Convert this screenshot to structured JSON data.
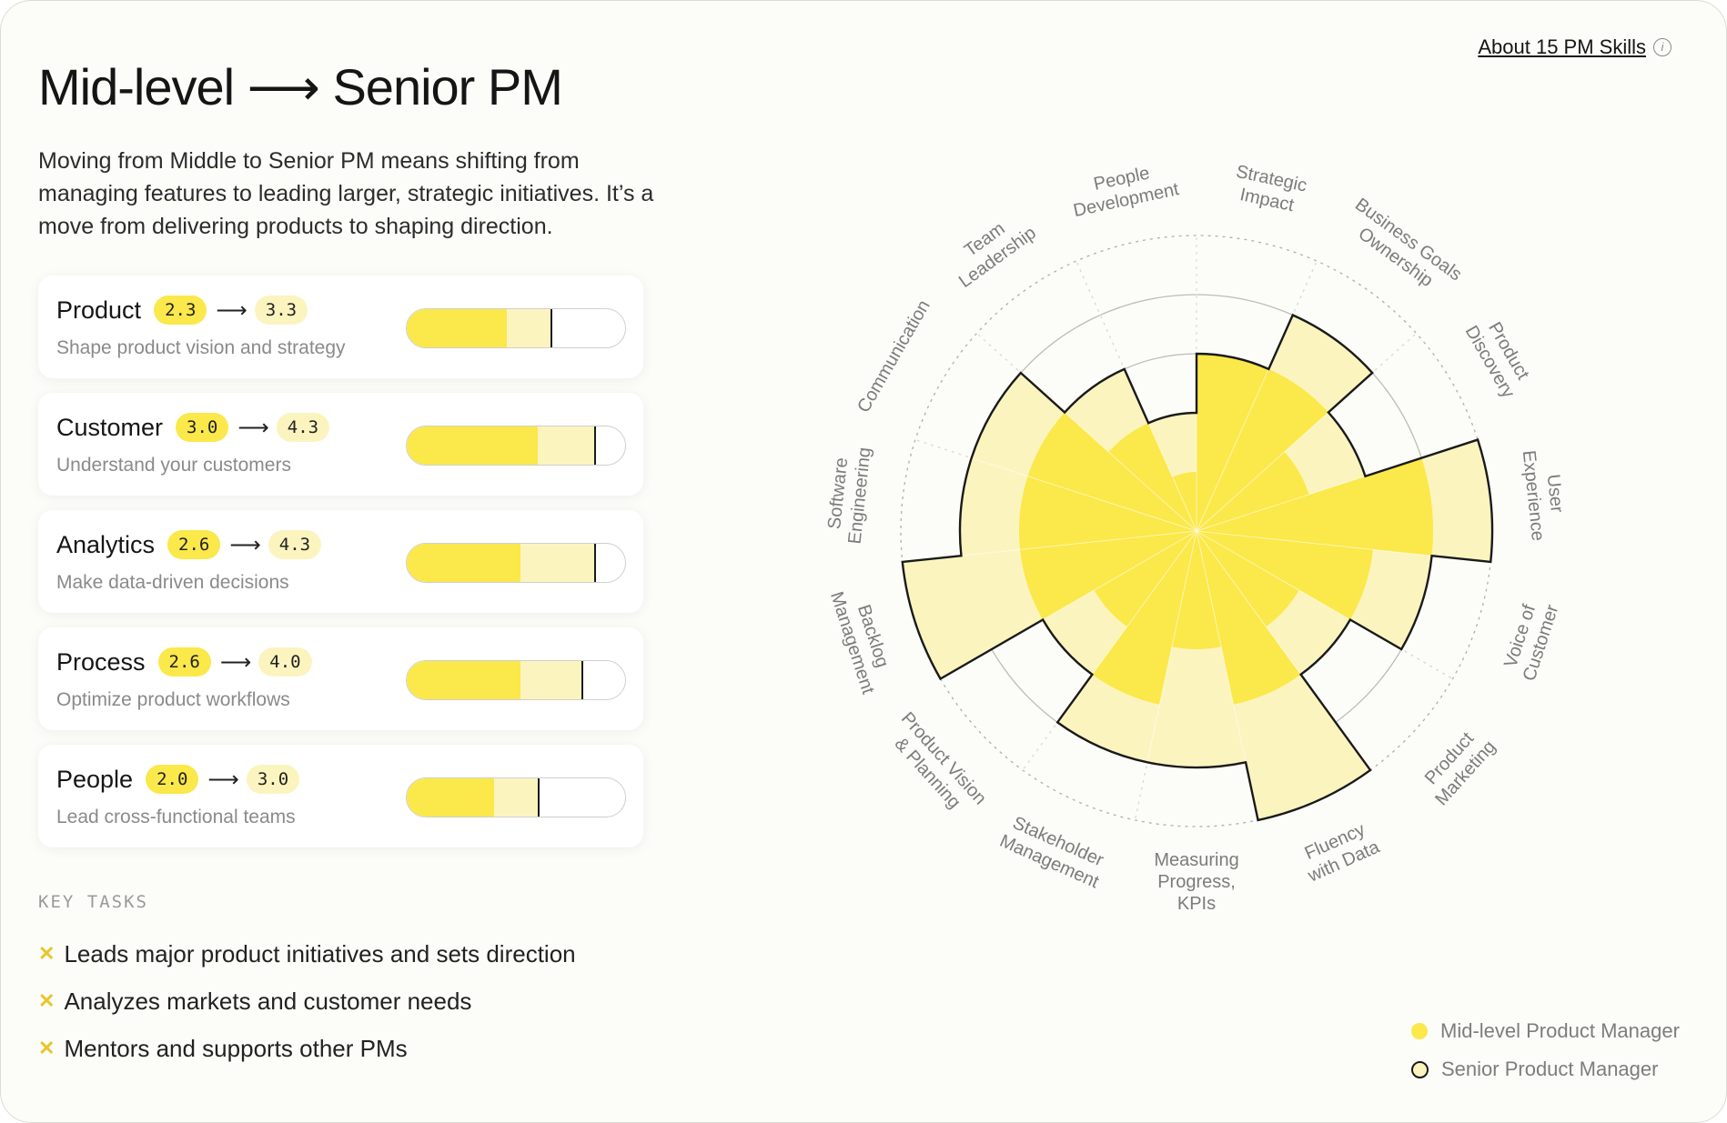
{
  "header": {
    "title": "Mid-level ⟶ Senior PM",
    "intro": "Moving from Middle to Senior PM means shifting from managing features to leading larger, strategic initiatives. It’s a move from delivering products to shaping direction.",
    "about_link": "About 15 PM Skills"
  },
  "cards": [
    {
      "name": "Product",
      "from": "2.3",
      "to": "3.3",
      "subtitle": "Shape product vision and strategy",
      "current": 2.3,
      "target": 3.3
    },
    {
      "name": "Customer",
      "from": "3.0",
      "to": "4.3",
      "subtitle": "Understand your customers",
      "current": 3.0,
      "target": 4.3
    },
    {
      "name": "Analytics",
      "from": "2.6",
      "to": "4.3",
      "subtitle": "Make data-driven decisions",
      "current": 2.6,
      "target": 4.3
    },
    {
      "name": "Process",
      "from": "2.6",
      "to": "4.0",
      "subtitle": "Optimize product workflows",
      "current": 2.6,
      "target": 4.0
    },
    {
      "name": "People",
      "from": "2.0",
      "to": "3.0",
      "subtitle": "Lead cross-functional teams",
      "current": 2.0,
      "target": 3.0
    }
  ],
  "key_tasks": {
    "title": "KEY TASKS",
    "items": [
      "Leads major product initiatives and sets direction",
      "Analyzes markets and customer needs",
      "Mentors and supports other PMs"
    ]
  },
  "legend": {
    "mid": "Mid-level Product Manager",
    "senior": "Senior Product Manager"
  },
  "colors": {
    "mid": "#fbe84a",
    "senior": "#fcf4bf",
    "outline": "#1a1a1a"
  },
  "icons": [
    "info-icon",
    "x-mark-icon"
  ],
  "radar": {
    "max": 5,
    "skills": [
      {
        "label": [
          "Strategic",
          "Impact"
        ],
        "mid": 3,
        "senior": 3
      },
      {
        "label": [
          "Business Goals",
          "Ownership"
        ],
        "mid": 3,
        "senior": 4
      },
      {
        "label": [
          "Product",
          "Discovery"
        ],
        "mid": 2,
        "senior": 3
      },
      {
        "label": [
          "User",
          "Experience"
        ],
        "mid": 4,
        "senior": 5
      },
      {
        "label": [
          "Voice of",
          "Customer"
        ],
        "mid": 3,
        "senior": 4
      },
      {
        "label": [
          "Product",
          "Marketing"
        ],
        "mid": 2,
        "senior": 3
      },
      {
        "label": [
          "Fluency",
          "with Data"
        ],
        "mid": 3,
        "senior": 5
      },
      {
        "label": [
          "Measuring",
          "Progress,",
          "KPIs"
        ],
        "mid": 2,
        "senior": 4
      },
      {
        "label": [
          "Stakeholder",
          "Management"
        ],
        "mid": 3,
        "senior": 4
      },
      {
        "label": [
          "Product Vision",
          "& Planning"
        ],
        "mid": 2,
        "senior": 3
      },
      {
        "label": [
          "Backlog",
          "Management"
        ],
        "mid": 3,
        "senior": 5
      },
      {
        "label": [
          "Software",
          "Engineering"
        ],
        "mid": 3,
        "senior": 4
      },
      {
        "label": [
          "Communication"
        ],
        "mid": 3,
        "senior": 4
      },
      {
        "label": [
          "Team",
          "Leadership"
        ],
        "mid": 2,
        "senior": 3
      },
      {
        "label": [
          "People",
          "Development"
        ],
        "mid": 1,
        "senior": 2
      }
    ]
  }
}
